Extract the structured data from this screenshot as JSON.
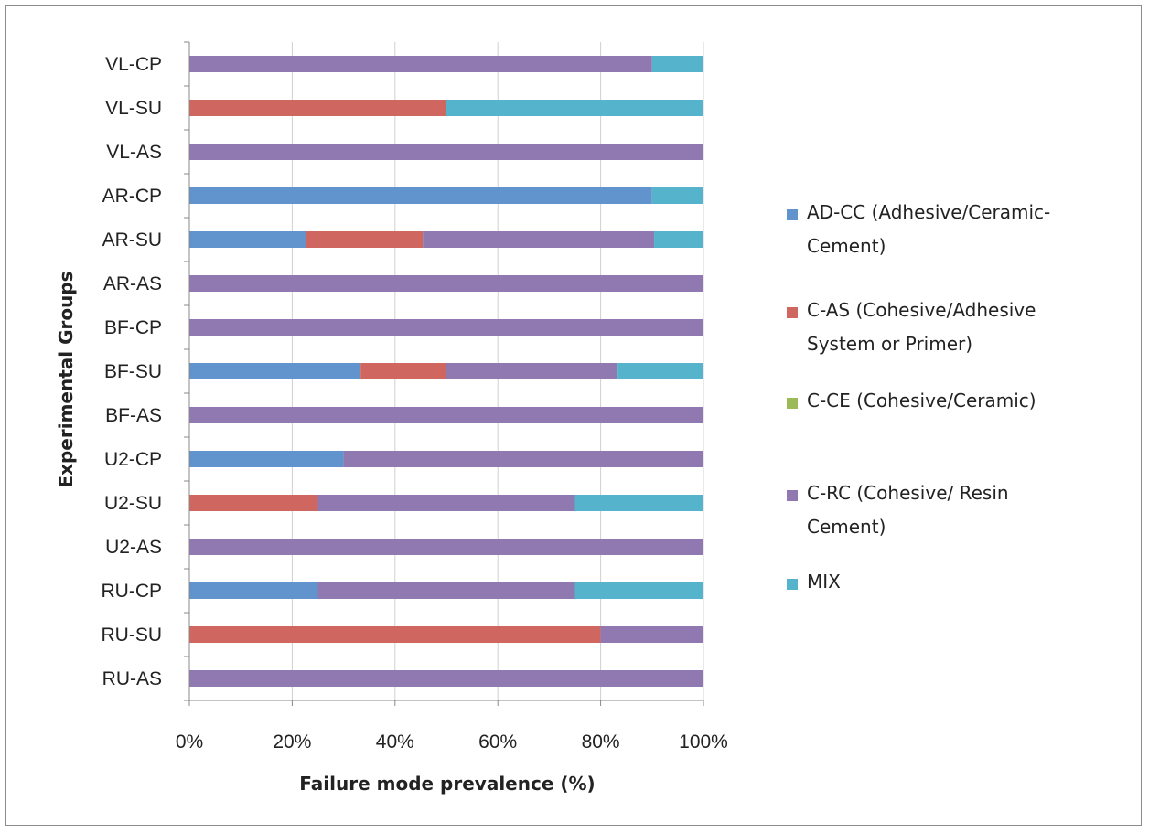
{
  "chart_data": {
    "type": "bar",
    "orientation": "horizontal",
    "stacked": "100%",
    "title": "",
    "xlabel": "Failure mode prevalence (%)",
    "ylabel": "Experimental Groups",
    "xlim": [
      0,
      100
    ],
    "x_ticks": [
      "0%",
      "20%",
      "40%",
      "60%",
      "80%",
      "100%"
    ],
    "grid": "vertical",
    "legend_position": "right",
    "categories": [
      "VL-CP",
      "VL-SU",
      "VL-AS",
      "AR-CP",
      "AR-SU",
      "AR-AS",
      "BF-CP",
      "BF-SU",
      "BF-AS",
      "U2-CP",
      "U2-SU",
      "U2-AS",
      "RU-CP",
      "RU-SU",
      "RU-AS"
    ],
    "series": [
      {
        "name": "AD-CC (Adhesive/Ceramic-Cement)",
        "legend_lines": [
          "AD-CC (Adhesive/Ceramic-",
          "Cement)"
        ],
        "color": "#6194CD",
        "values": [
          0,
          0,
          0,
          90,
          22.7,
          0,
          0,
          33.3,
          0,
          30,
          0,
          0,
          25,
          0,
          0
        ]
      },
      {
        "name": "C-AS (Cohesive/Adhesive System or Primer)",
        "legend_lines": [
          "C-AS (Cohesive/Adhesive",
          "System or Primer)"
        ],
        "color": "#CF6760",
        "values": [
          0,
          50,
          0,
          0,
          22.7,
          0,
          0,
          16.7,
          0,
          0,
          25,
          0,
          0,
          80,
          0
        ]
      },
      {
        "name": "C-CE (Cohesive/Ceramic)",
        "legend_lines": [
          "C-CE (Cohesive/Ceramic)"
        ],
        "color": "#9BBB59",
        "values": [
          0,
          0,
          0,
          0,
          0,
          0,
          0,
          0,
          0,
          0,
          0,
          0,
          0,
          0,
          0
        ]
      },
      {
        "name": "C-RC (Cohesive/ Resin Cement)",
        "legend_lines": [
          "C-RC (Cohesive/ Resin",
          "Cement)"
        ],
        "color": "#9079B0",
        "values": [
          90,
          0,
          100,
          0,
          45,
          100,
          100,
          33.3,
          100,
          70,
          50,
          100,
          50,
          20,
          100
        ]
      },
      {
        "name": "MIX",
        "legend_lines": [
          "MIX"
        ],
        "color": "#55B4CC",
        "values": [
          10,
          50,
          0,
          10,
          9.6,
          0,
          0,
          16.7,
          0,
          0,
          25,
          0,
          25,
          0,
          0
        ]
      }
    ]
  }
}
